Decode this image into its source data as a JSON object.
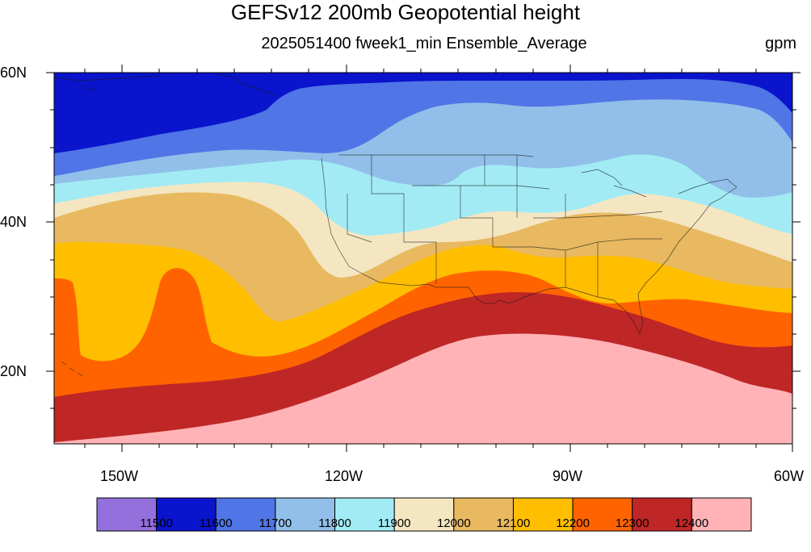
{
  "title": "GEFSv12 200mb Geopotential height",
  "subtitle": "2025051400 fweek1_min Ensemble_Average",
  "units": "gpm",
  "lat_labels": [
    "60N",
    "40N",
    "20N"
  ],
  "lon_labels": [
    "150W",
    "120W",
    "90W",
    "60W"
  ],
  "colorbar": {
    "levels": [
      "11500",
      "11600",
      "11700",
      "11800",
      "11900",
      "12000",
      "12100",
      "12200",
      "12300",
      "12400"
    ],
    "colors": [
      "#9370db",
      "#0a14cc",
      "#4f75e6",
      "#91bfe9",
      "#a2ebf5",
      "#f5e6c2",
      "#e8b960",
      "#ffbe00",
      "#ff6300",
      "#bf2626",
      "#ffb3b6"
    ]
  }
}
